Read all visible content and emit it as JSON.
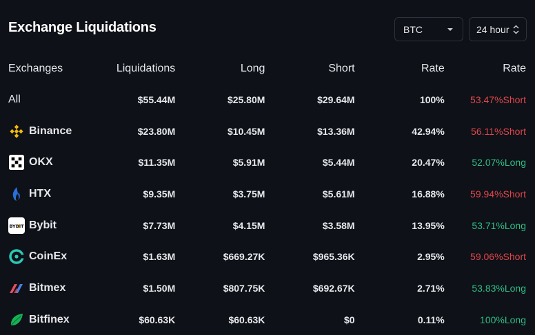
{
  "header": {
    "title": "Exchange Liquidations",
    "coin_select": "BTC",
    "period_select": "24 hour"
  },
  "table": {
    "columns": [
      "Exchanges",
      "Liquidations",
      "Long",
      "Short",
      "Rate",
      "Rate"
    ],
    "rows": [
      {
        "exchange": "All",
        "liquidations": "$55.44M",
        "long": "$25.80M",
        "short": "$29.64M",
        "rate": "100%",
        "side_rate": "53.47%Short",
        "side": "short",
        "icon": "none"
      },
      {
        "exchange": "Binance",
        "liquidations": "$23.80M",
        "long": "$10.45M",
        "short": "$13.36M",
        "rate": "42.94%",
        "side_rate": "56.11%Short",
        "side": "short",
        "icon": "binance-logo-icon"
      },
      {
        "exchange": "OKX",
        "liquidations": "$11.35M",
        "long": "$5.91M",
        "short": "$5.44M",
        "rate": "20.47%",
        "side_rate": "52.07%Long",
        "side": "long",
        "icon": "okx-logo-icon"
      },
      {
        "exchange": "HTX",
        "liquidations": "$9.35M",
        "long": "$3.75M",
        "short": "$5.61M",
        "rate": "16.88%",
        "side_rate": "59.94%Short",
        "side": "short",
        "icon": "htx-logo-icon"
      },
      {
        "exchange": "Bybit",
        "liquidations": "$7.73M",
        "long": "$4.15M",
        "short": "$3.58M",
        "rate": "13.95%",
        "side_rate": "53.71%Long",
        "side": "long",
        "icon": "bybit-logo-icon"
      },
      {
        "exchange": "CoinEx",
        "liquidations": "$1.63M",
        "long": "$669.27K",
        "short": "$965.36K",
        "rate": "2.95%",
        "side_rate": "59.06%Short",
        "side": "short",
        "icon": "coinex-logo-icon"
      },
      {
        "exchange": "Bitmex",
        "liquidations": "$1.50M",
        "long": "$807.75K",
        "short": "$692.67K",
        "rate": "2.71%",
        "side_rate": "53.83%Long",
        "side": "long",
        "icon": "bitmex-logo-icon"
      },
      {
        "exchange": "Bitfinex",
        "liquidations": "$60.63K",
        "long": "$60.63K",
        "short": "$0",
        "rate": "0.11%",
        "side_rate": "100%Long",
        "side": "long",
        "icon": "bitfinex-logo-icon"
      }
    ]
  },
  "colors": {
    "background": "#0e1117",
    "short": "#e0474c",
    "long": "#2ebd85",
    "binance": "#f0b90b",
    "coinex": "#2ac9b8"
  }
}
